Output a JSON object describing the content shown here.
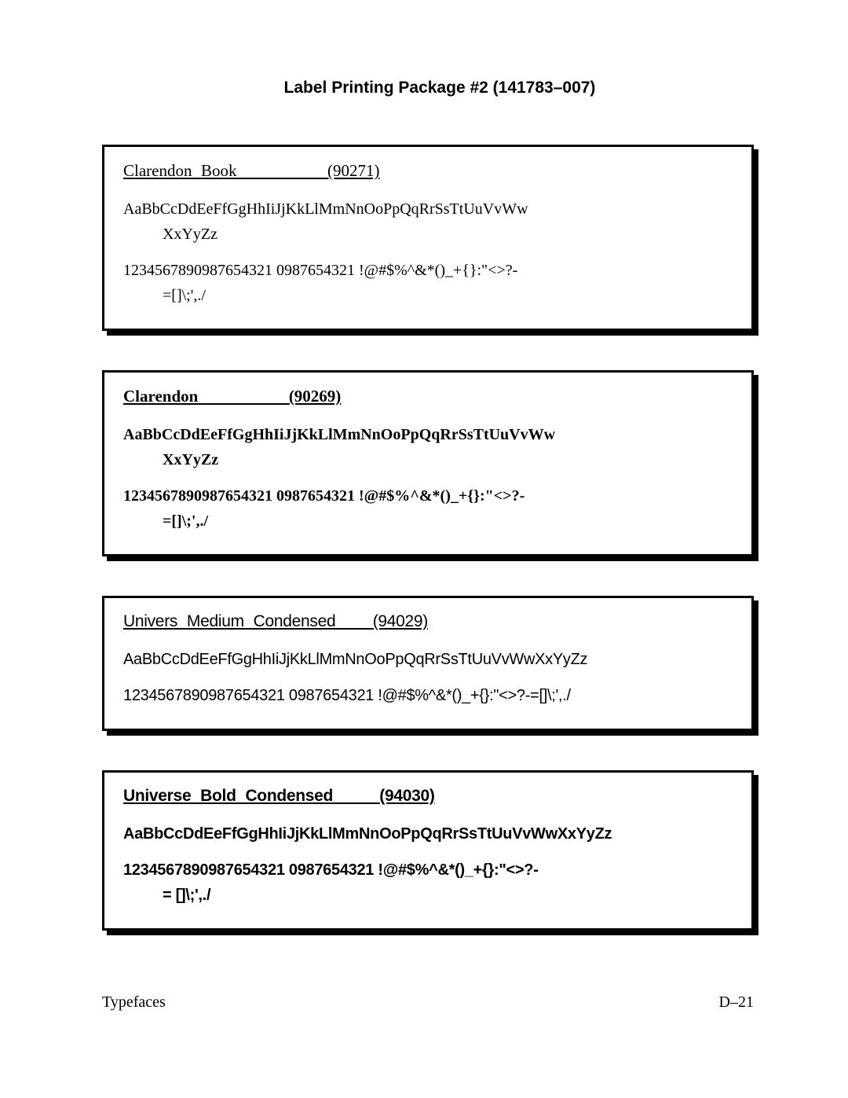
{
  "page_title": "Label Printing Package #2 (141783–007)",
  "footer_left": "Typefaces",
  "footer_right": "D–21",
  "boxes": [
    {
      "header_name": "Clarendon  Book",
      "header_code": "(90271)",
      "alpha1": "AaBbCcDdEeFfGgHhIiJjKkLlMmNnOoPpQqRrSsTtUuVvWw",
      "alpha2": "XxYyZz",
      "sym1": "1234567890987654321  0987654321  !@#$%^&*()_+{}:\"<>?-",
      "sym2": "=[]\\;',./"
    },
    {
      "header_name": "Clarendon",
      "header_code": "(90269)",
      "alpha1": "AaBbCcDdEeFfGgHhIiJjKkLlMmNnOoPpQqRrSsTtUuVvWw",
      "alpha2": "XxYyZz",
      "sym1": "1234567890987654321  0987654321  !@#$%^&*()_+{}:\"<>?-",
      "sym2": "=[]\\;',./"
    },
    {
      "header_name": "Univers  Medium  Condensed",
      "header_code": "(94029)",
      "alpha1": "AaBbCcDdEeFfGgHhIiJjKkLlMmNnOoPpQqRrSsTtUuVvWwXxYyZz",
      "alpha2": "",
      "sym1": "1234567890987654321  0987654321  !@#$%^&*()_+{}:\"<>?-=[]\\;',./",
      "sym2": ""
    },
    {
      "header_name": "Universe  Bold  Condensed",
      "header_code": "(94030)",
      "alpha1": "AaBbCcDdEeFfGgHhIiJjKkLlMmNnOoPpQqRrSsTtUuVvWwXxYyZz",
      "alpha2": "",
      "sym1": "1234567890987654321  0987654321  !@#$%^&*()_+{}:\"<>?-",
      "sym2": "= []\\;',./"
    }
  ]
}
